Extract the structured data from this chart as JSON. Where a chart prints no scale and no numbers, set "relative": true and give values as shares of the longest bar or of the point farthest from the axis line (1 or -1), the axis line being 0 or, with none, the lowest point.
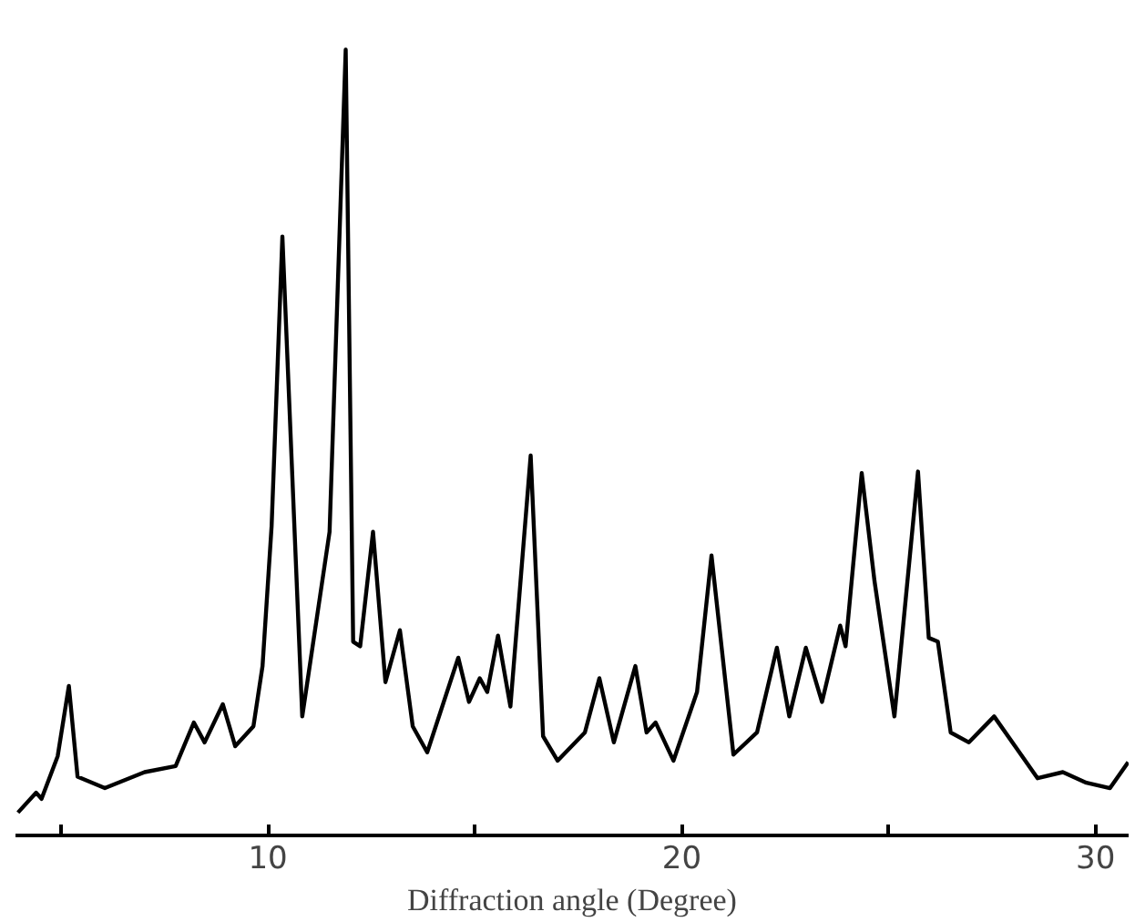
{
  "chart_data": {
    "type": "line",
    "xlabel": "Diffraction angle (Degree)",
    "relative": true,
    "xlim": [
      3.9,
      30.8
    ],
    "xticks": [
      {
        "value": 5,
        "label": null
      },
      10,
      {
        "value": 15,
        "label": null
      },
      20,
      {
        "value": 25,
        "label": null
      },
      30
    ],
    "series": [
      {
        "color": "#000000",
        "x": [
          3.96,
          4.4,
          4.53,
          4.92,
          5.19,
          5.4,
          6.06,
          7.02,
          7.77,
          8.21,
          8.47,
          8.91,
          9.21,
          9.65,
          9.87,
          10.09,
          10.35,
          10.83,
          11.49,
          11.88,
          12.06,
          12.23,
          12.54,
          12.84,
          13.19,
          13.5,
          13.85,
          14.6,
          14.86,
          15.12,
          15.3,
          15.56,
          15.86,
          16.35,
          16.65,
          17.0,
          17.66,
          18.01,
          18.36,
          18.88,
          19.15,
          19.37,
          19.8,
          20.37,
          20.72,
          21.25,
          21.82,
          22.3,
          22.6,
          23.0,
          23.39,
          23.83,
          23.96,
          24.35,
          24.66,
          25.14,
          25.71,
          25.97,
          26.19,
          26.5,
          26.94,
          27.55,
          28.16,
          28.6,
          29.21,
          29.78,
          30.35,
          30.79
        ],
        "values": [
          0,
          0.026,
          0.018,
          0.074,
          0.166,
          0.047,
          0.032,
          0.053,
          0.061,
          0.118,
          0.092,
          0.142,
          0.087,
          0.113,
          0.192,
          0.376,
          0.755,
          0.126,
          0.368,
          1.0,
          0.224,
          0.218,
          0.368,
          0.171,
          0.239,
          0.113,
          0.079,
          0.203,
          0.145,
          0.176,
          0.158,
          0.232,
          0.139,
          0.468,
          0.1,
          0.068,
          0.105,
          0.176,
          0.092,
          0.192,
          0.105,
          0.118,
          0.068,
          0.158,
          0.337,
          0.076,
          0.105,
          0.216,
          0.126,
          0.216,
          0.145,
          0.245,
          0.218,
          0.445,
          0.303,
          0.126,
          0.447,
          0.229,
          0.224,
          0.105,
          0.092,
          0.126,
          0.079,
          0.045,
          0.053,
          0.039,
          0.032,
          0.066
        ]
      }
    ]
  }
}
